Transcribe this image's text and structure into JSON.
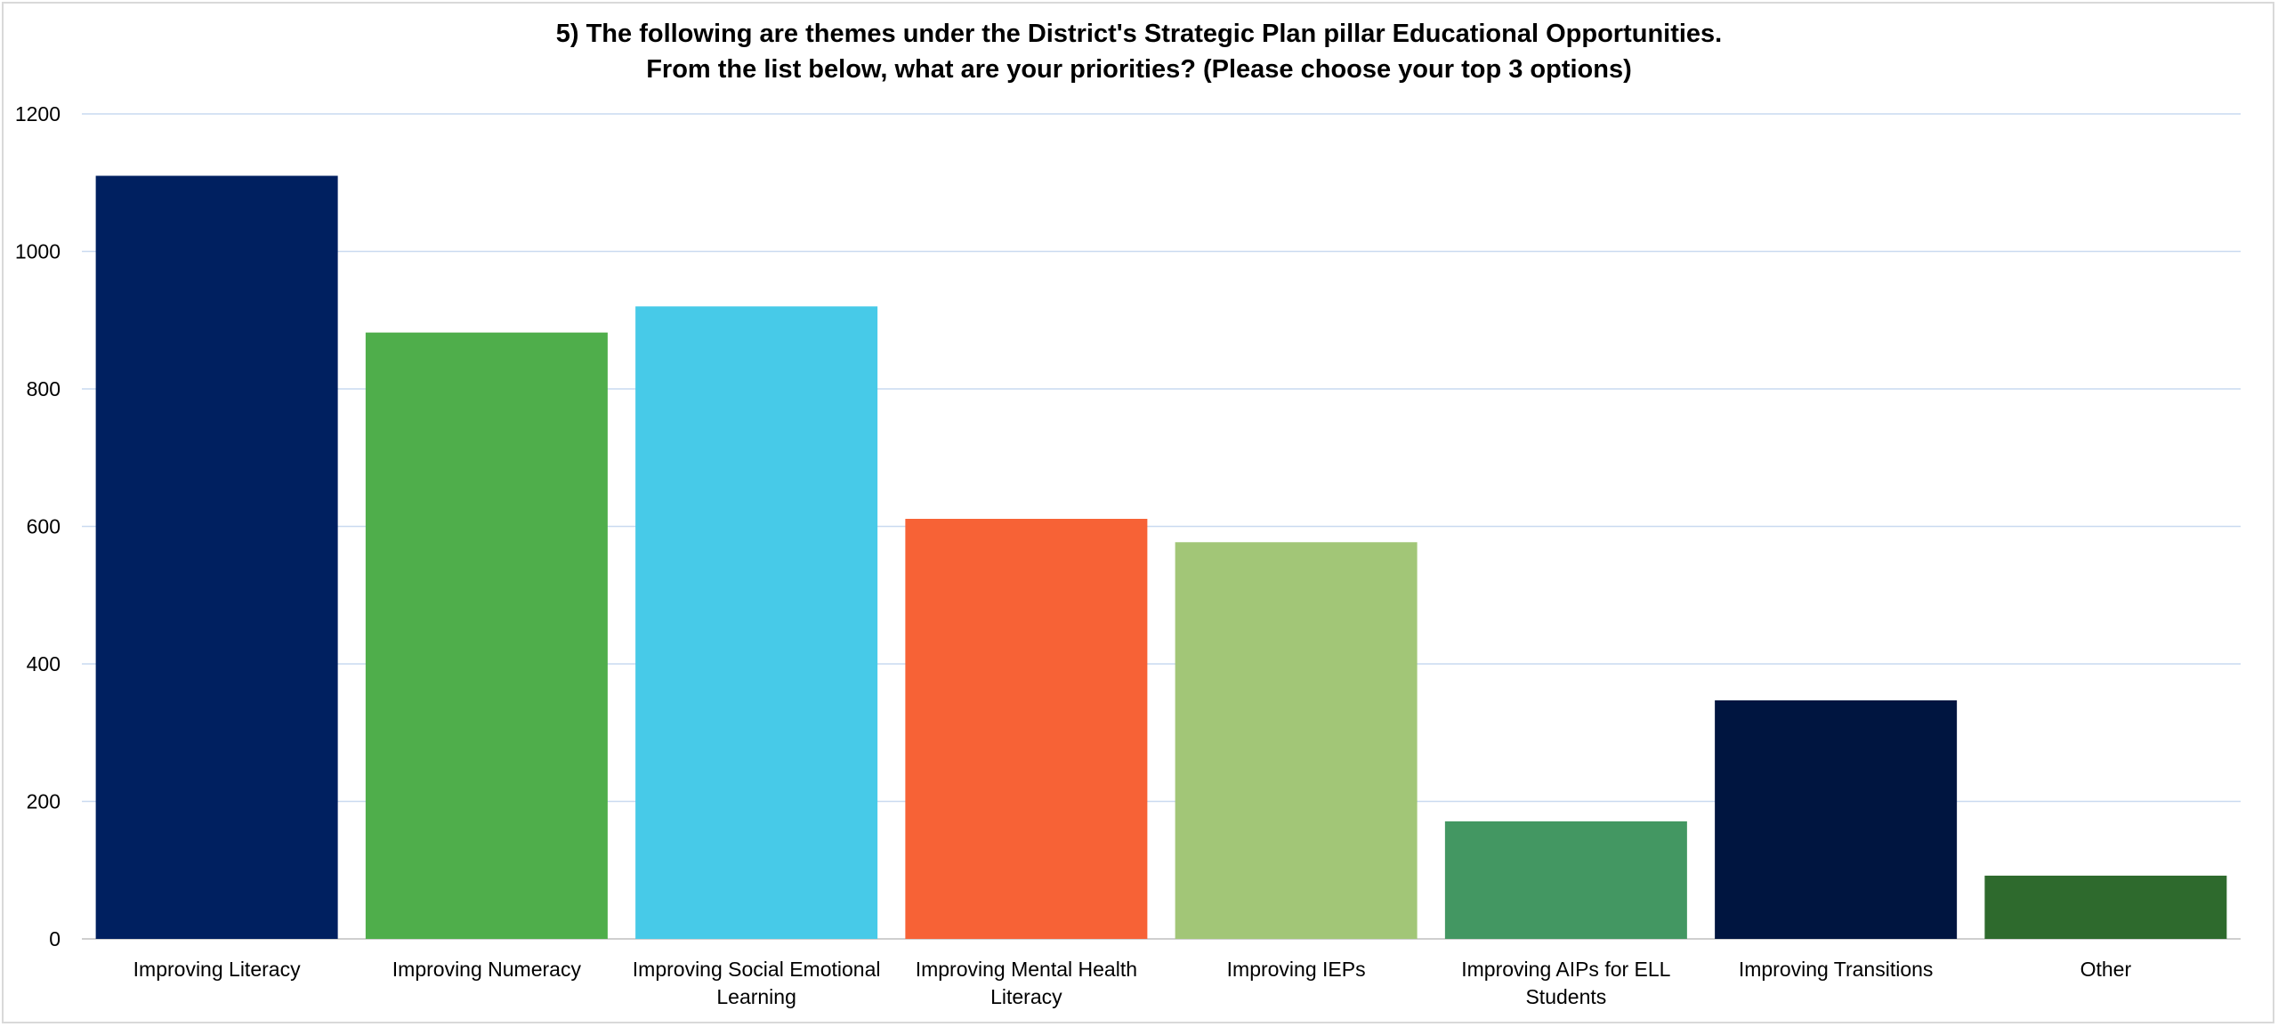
{
  "chart_data": {
    "type": "bar",
    "title_lines": [
      "5) The following are themes under the District's Strategic Plan pillar Educational Opportunities.",
      "From the list below, what are your priorities? (Please choose your top 3 options)"
    ],
    "categories": [
      [
        "Improving Literacy"
      ],
      [
        "Improving Numeracy"
      ],
      [
        "Improving Social Emotional",
        "Learning"
      ],
      [
        "Improving Mental Health",
        "Literacy"
      ],
      [
        "Improving IEPs"
      ],
      [
        "Improving AIPs for ELL",
        "Students"
      ],
      [
        "Improving Transitions"
      ],
      [
        "Other"
      ]
    ],
    "values": [
      1110,
      882,
      920,
      611,
      577,
      171,
      347,
      92
    ],
    "colors": [
      "#002060",
      "#4fae4b",
      "#47cae8",
      "#f76236",
      "#a2c677",
      "#439762",
      "#001540",
      "#2e6a2d"
    ],
    "ylim": [
      0,
      1200
    ],
    "yticks": [
      0,
      200,
      400,
      600,
      800,
      1000,
      1200
    ],
    "gridlines": true,
    "gridline_color": "#c9daf0",
    "legend": "none"
  }
}
